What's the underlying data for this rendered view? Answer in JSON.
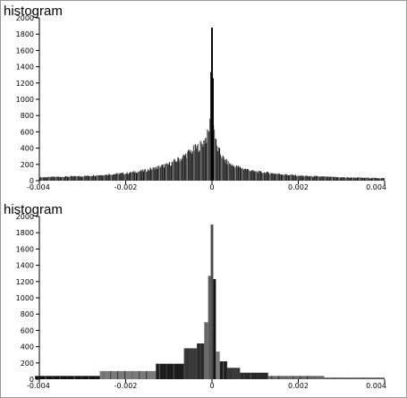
{
  "chart_data": [
    {
      "type": "bar",
      "title": "histogram",
      "xlim": [
        -0.004,
        0.004
      ],
      "ylim": [
        0,
        2000
      ],
      "xticks": [
        "-0.004",
        "-0.002",
        "0",
        "0.002",
        "0.004"
      ],
      "yticks": [
        "0",
        "200",
        "400",
        "600",
        "800",
        "1000",
        "1200",
        "1400",
        "1600",
        "1800",
        "2000"
      ],
      "bin_width": 2e-05,
      "description_points": {
        "x": [
          -0.004,
          -0.003,
          -0.002,
          -0.0015,
          -0.001,
          -0.0007,
          -0.0005,
          -0.0003,
          -0.0002,
          -0.0001,
          -5e-05,
          -2e-05,
          0,
          2e-05,
          5e-05,
          0.0001,
          0.0002,
          0.0003,
          0.0005,
          0.001,
          0.002,
          0.003,
          0.004
        ],
        "y": [
          40,
          55,
          90,
          130,
          200,
          280,
          360,
          420,
          470,
          560,
          700,
          1880,
          1240,
          820,
          620,
          420,
          320,
          240,
          180,
          110,
          60,
          40,
          30
        ]
      }
    },
    {
      "type": "bar",
      "title": "histogram",
      "xlim": [
        -0.004,
        0.004
      ],
      "ylim": [
        0,
        2000
      ],
      "xticks": [
        "-0.004",
        "-0.002",
        "0",
        "0.002",
        "0.004"
      ],
      "yticks": [
        "0",
        "200",
        "400",
        "600",
        "800",
        "1000",
        "1200",
        "1400",
        "1600",
        "1800",
        "2000"
      ],
      "bins": [
        {
          "x0": -0.0045,
          "x1": -0.0026,
          "y": 40
        },
        {
          "x0": -0.0026,
          "x1": -0.0013,
          "y": 100
        },
        {
          "x0": -0.0013,
          "x1": -0.00065,
          "y": 190
        },
        {
          "x0": -0.00065,
          "x1": -0.00035,
          "y": 380
        },
        {
          "x0": -0.00035,
          "x1": -0.00018,
          "y": 440
        },
        {
          "x0": -0.00018,
          "x1": -9e-05,
          "y": 700
        },
        {
          "x0": -9e-05,
          "x1": -3e-05,
          "y": 1270
        },
        {
          "x0": -3e-05,
          "x1": 3e-05,
          "y": 1900
        },
        {
          "x0": 3e-05,
          "x1": 9e-05,
          "y": 1230
        },
        {
          "x0": 9e-05,
          "x1": 0.00018,
          "y": 340
        },
        {
          "x0": 0.00018,
          "x1": 0.00035,
          "y": 220
        },
        {
          "x0": 0.00035,
          "x1": 0.00065,
          "y": 140
        },
        {
          "x0": 0.00065,
          "x1": 0.0013,
          "y": 80
        },
        {
          "x0": 0.0013,
          "x1": 0.0026,
          "y": 40
        },
        {
          "x0": 0.0026,
          "x1": 0.0045,
          "y": 20
        }
      ]
    }
  ]
}
